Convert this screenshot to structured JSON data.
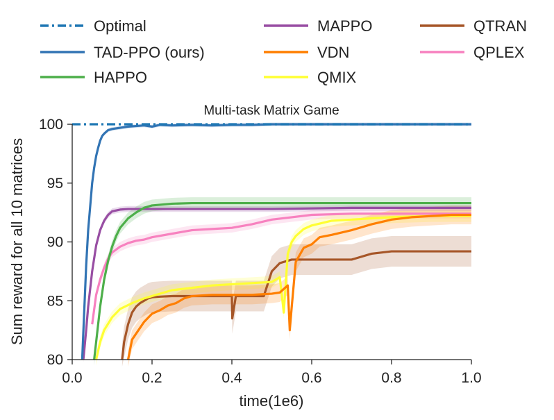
{
  "chart_data": {
    "type": "line",
    "title": "Multi-task Matrix Game",
    "xlabel": "time(1e6)",
    "ylabel": "Sum reward for all 10 matrices",
    "xlim": [
      0.0,
      1.0
    ],
    "ylim": [
      80,
      100
    ],
    "xticks": [
      "0.0",
      "0.2",
      "0.4",
      "0.6",
      "0.8",
      "1.0"
    ],
    "yticks": [
      "80",
      "85",
      "90",
      "95",
      "100"
    ],
    "legend_position": "top",
    "series": [
      {
        "name": "Optimal",
        "color": "#1f77b4",
        "dash": "dashdot",
        "band": 0,
        "x": [
          0.0,
          1.0
        ],
        "y": [
          100,
          100
        ]
      },
      {
        "name": "TAD-PPO (ours)",
        "color": "#3274b4",
        "band": 0.15,
        "x": [
          0.025,
          0.03,
          0.035,
          0.04,
          0.045,
          0.05,
          0.055,
          0.06,
          0.065,
          0.07,
          0.075,
          0.08,
          0.09,
          0.1,
          0.12,
          0.14,
          0.16,
          0.18,
          0.2,
          0.22,
          0.25,
          0.3,
          0.35,
          0.4,
          0.45,
          0.5,
          0.6,
          0.7,
          0.8,
          1.0
        ],
        "y": [
          80,
          84,
          88,
          91,
          93,
          95,
          96.3,
          97.3,
          98,
          98.6,
          99,
          99.2,
          99.5,
          99.6,
          99.7,
          99.8,
          99.85,
          99.9,
          99.8,
          99.95,
          99.9,
          99.95,
          99.9,
          99.95,
          99.95,
          100,
          100,
          100,
          100,
          100
        ]
      },
      {
        "name": "HAPPO",
        "color": "#4daf4a",
        "band": 0.5,
        "x": [
          0.055,
          0.06,
          0.07,
          0.08,
          0.09,
          0.1,
          0.11,
          0.12,
          0.14,
          0.16,
          0.18,
          0.2,
          0.25,
          0.3,
          0.4,
          0.6,
          0.8,
          1.0
        ],
        "y": [
          80,
          81.5,
          84.5,
          86.8,
          88.4,
          89.6,
          90.5,
          91.2,
          92,
          92.5,
          92.9,
          93.1,
          93.25,
          93.3,
          93.3,
          93.3,
          93.3,
          93.3
        ]
      },
      {
        "name": "MAPPO",
        "color": "#984ea3",
        "band": 0.25,
        "x": [
          0.028,
          0.035,
          0.04,
          0.05,
          0.06,
          0.07,
          0.08,
          0.09,
          0.1,
          0.12,
          0.14,
          0.2,
          0.3,
          0.5,
          0.7,
          1.0
        ],
        "y": [
          80,
          82.5,
          84.5,
          87.5,
          89.7,
          91,
          91.8,
          92.3,
          92.6,
          92.75,
          92.8,
          92.8,
          92.8,
          92.8,
          92.9,
          92.9
        ]
      },
      {
        "name": "VDN",
        "color": "#ff7f00",
        "band": 0.8,
        "x": [
          0.14,
          0.15,
          0.16,
          0.18,
          0.2,
          0.22,
          0.24,
          0.26,
          0.28,
          0.3,
          0.35,
          0.4,
          0.45,
          0.5,
          0.52,
          0.54,
          0.545,
          0.55,
          0.56,
          0.58,
          0.6,
          0.62,
          0.65,
          0.7,
          0.75,
          0.8,
          0.85,
          0.9,
          0.95,
          1.0
        ],
        "y": [
          80,
          81.7,
          82.2,
          83.2,
          83.9,
          84.2,
          84.6,
          84.8,
          85.2,
          85.4,
          85.5,
          85.5,
          85.5,
          85.6,
          85.7,
          86.3,
          82.5,
          84.5,
          88.3,
          89.5,
          89.8,
          90.4,
          90.6,
          91,
          91.5,
          91.9,
          92.1,
          92.2,
          92.3,
          92.3
        ]
      },
      {
        "name": "QMIX",
        "color": "#ffff33",
        "band": 0.5,
        "x": [
          0.06,
          0.07,
          0.08,
          0.1,
          0.12,
          0.15,
          0.18,
          0.2,
          0.25,
          0.3,
          0.35,
          0.4,
          0.45,
          0.5,
          0.52,
          0.53,
          0.54,
          0.55,
          0.56,
          0.58,
          0.6,
          0.65,
          0.7,
          0.8,
          0.9,
          1.0
        ],
        "y": [
          80,
          81.5,
          82.5,
          83.6,
          84.3,
          84.8,
          85.2,
          85.4,
          85.9,
          86.1,
          86.3,
          86.4,
          86.5,
          86.6,
          87,
          84,
          89,
          90,
          90.5,
          91.1,
          91.4,
          91.8,
          91.9,
          92.1,
          92.2,
          92.2
        ]
      },
      {
        "name": "QTRAN",
        "color": "#a65628",
        "band": 1.3,
        "x": [
          0.125,
          0.13,
          0.14,
          0.15,
          0.16,
          0.17,
          0.18,
          0.19,
          0.2,
          0.22,
          0.25,
          0.3,
          0.4,
          0.401,
          0.41,
          0.48,
          0.5,
          0.52,
          0.55,
          0.6,
          0.7,
          0.75,
          0.8,
          0.9,
          1.0
        ],
        "y": [
          80,
          81.5,
          83,
          84,
          84.5,
          84.8,
          85,
          85.2,
          85.3,
          85.35,
          85.4,
          85.4,
          85.4,
          83.5,
          85.4,
          85.4,
          87.5,
          88.2,
          88.5,
          88.5,
          88.5,
          89,
          89.2,
          89.2,
          89.2
        ]
      },
      {
        "name": "QPLEX",
        "color": "#f781bf",
        "band": 0.4,
        "x": [
          0.05,
          0.06,
          0.07,
          0.08,
          0.09,
          0.1,
          0.12,
          0.14,
          0.16,
          0.18,
          0.2,
          0.25,
          0.3,
          0.35,
          0.4,
          0.45,
          0.5,
          0.55,
          0.6,
          0.7,
          0.8,
          0.9,
          1.0
        ],
        "y": [
          83,
          85.5,
          86.8,
          87.8,
          88.6,
          89.1,
          89.6,
          89.9,
          90.1,
          90.2,
          90.4,
          90.7,
          91,
          91.1,
          91.2,
          91.5,
          91.9,
          92.1,
          92.3,
          92.4,
          92.4,
          92.4,
          92.4
        ]
      }
    ],
    "legend_order": [
      "Optimal",
      "TAD-PPO (ours)",
      "HAPPO",
      "MAPPO",
      "VDN",
      "QMIX",
      "QTRAN",
      "QPLEX"
    ]
  }
}
